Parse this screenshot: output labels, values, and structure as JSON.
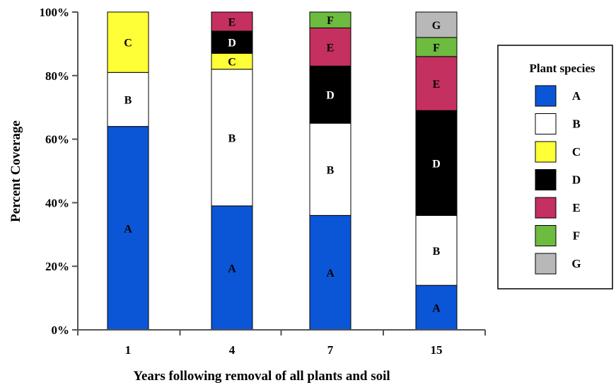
{
  "chart_data": {
    "type": "bar",
    "stacked": true,
    "categories": [
      "1",
      "4",
      "7",
      "15"
    ],
    "xlabel": "Years following removal of all plants and soil",
    "ylabel": "Percent Coverage",
    "ylim": [
      0,
      100
    ],
    "y_ticks": [
      0,
      20,
      40,
      60,
      80,
      100
    ],
    "y_tick_format": "{v}%",
    "grid": false,
    "legend": {
      "title": "Plant species",
      "placement": "right"
    },
    "series": [
      {
        "name": "A",
        "color": "#0b56d6",
        "values": [
          64,
          39,
          36,
          14
        ]
      },
      {
        "name": "B",
        "color": "#ffffff",
        "values": [
          17,
          43,
          29,
          22
        ]
      },
      {
        "name": "C",
        "color": "#ffff38",
        "values": [
          19,
          5,
          0,
          0
        ]
      },
      {
        "name": "D",
        "color": "#000000",
        "values": [
          0,
          7,
          18,
          33
        ]
      },
      {
        "name": "E",
        "color": "#c43060",
        "values": [
          0,
          6,
          12,
          17
        ]
      },
      {
        "name": "F",
        "color": "#6dbb3f",
        "values": [
          0,
          0,
          5,
          6
        ]
      },
      {
        "name": "G",
        "color": "#b8b8b8",
        "values": [
          0,
          0,
          0,
          8
        ]
      }
    ]
  }
}
